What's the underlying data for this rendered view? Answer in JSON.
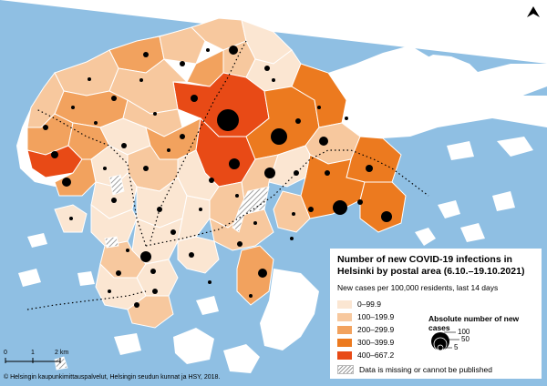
{
  "legend": {
    "title": "Number of new COVID-19 infections in Helsinki by postal area (6.10.–19.10.2021)",
    "subtitle": "New cases per 100,000 residents, last 14 days",
    "classes": [
      {
        "label": "0–99.9",
        "color": "#fbe6d2"
      },
      {
        "label": "100–199.9",
        "color": "#f7c89e"
      },
      {
        "label": "200–299.9",
        "color": "#f2a25e"
      },
      {
        "label": "300–399.9",
        "color": "#ec7a1f"
      },
      {
        "label": "400–667.2",
        "color": "#e84a16"
      }
    ],
    "absolute_title": "Absolute number of new cases",
    "absolute_values": [
      "100",
      "50",
      "5"
    ],
    "missing_label": "Data is missing or cannot be published"
  },
  "scale": {
    "labels": [
      "0",
      "1",
      "2 km"
    ]
  },
  "credit": "© Helsingin kaupunkimittauspalvelut, Helsingin seudun kunnat ja HSY, 2018.",
  "colors": {
    "sea": "#8fbfe3",
    "land_outside": "#ffffff",
    "dot": "#000000",
    "route": "#000000"
  },
  "icons": {
    "north_arrow": "north-arrow-icon"
  }
}
